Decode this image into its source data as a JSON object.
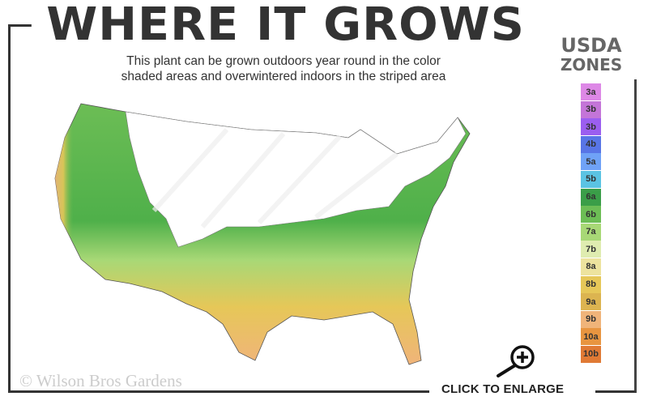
{
  "header": {
    "title": "WHERE IT GROWS"
  },
  "description": {
    "line1": "This plant can be grown outdoors year round in the color",
    "line2": "shaded areas and overwintered indoors in the striped area"
  },
  "legend": {
    "title_line1": "USDA",
    "title_line2": "ZONES",
    "zones": [
      {
        "label": "3a",
        "color": "#dd88e6"
      },
      {
        "label": "3b",
        "color": "#c475d8"
      },
      {
        "label": "3b",
        "color": "#9b5ef0"
      },
      {
        "label": "4b",
        "color": "#5875e6"
      },
      {
        "label": "5a",
        "color": "#6fa2f7"
      },
      {
        "label": "5b",
        "color": "#5bc3e3"
      },
      {
        "label": "6a",
        "color": "#3a9e48"
      },
      {
        "label": "6b",
        "color": "#6cbd55"
      },
      {
        "label": "7a",
        "color": "#a8d876"
      },
      {
        "label": "7b",
        "color": "#dfecb0"
      },
      {
        "label": "8a",
        "color": "#ede39e"
      },
      {
        "label": "8b",
        "color": "#e6c758"
      },
      {
        "label": "9a",
        "color": "#dcb450"
      },
      {
        "label": "9b",
        "color": "#f0b47a"
      },
      {
        "label": "10a",
        "color": "#e89540"
      },
      {
        "label": "10b",
        "color": "#e07a35"
      }
    ]
  },
  "footer": {
    "copyright": "© Wilson Bros Gardens",
    "enlarge_label": "CLICK TO ENLARGE"
  },
  "icons": {
    "enlarge": "magnifier-plus-icon"
  }
}
